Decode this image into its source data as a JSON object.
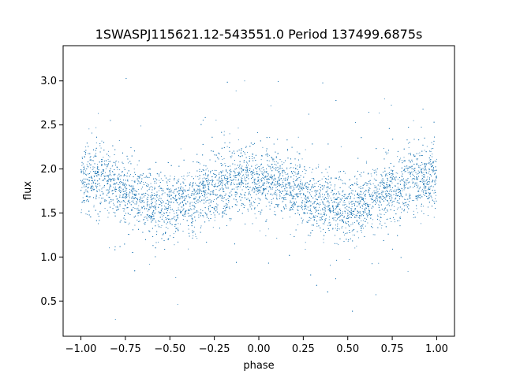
{
  "chart_data": {
    "type": "scatter",
    "title": "1SWASPJ115621.12-543551.0 Period 137499.6875s",
    "xlabel": "phase",
    "ylabel": "flux",
    "xlim": [
      -1.1,
      1.1
    ],
    "ylim": [
      0.1,
      3.4
    ],
    "xticks": [
      -1.0,
      -0.75,
      -0.5,
      -0.25,
      0.0,
      0.25,
      0.5,
      0.75,
      1.0
    ],
    "xtick_labels": [
      "−1.00",
      "−0.75",
      "−0.50",
      "−0.25",
      "0.00",
      "0.25",
      "0.50",
      "0.75",
      "1.00"
    ],
    "yticks": [
      0.5,
      1.0,
      1.5,
      2.0,
      2.5,
      3.0
    ],
    "ytick_labels": [
      "0.5",
      "1.0",
      "1.5",
      "2.0",
      "2.5",
      "3.0"
    ],
    "grid": false,
    "legend": "none",
    "series": [
      {
        "color": "#1f77b4",
        "phase_range": [
          -1.0,
          1.0
        ],
        "profile_phase": [
          -1.0,
          -0.9,
          -0.8,
          -0.7,
          -0.6,
          -0.5,
          -0.4,
          -0.3,
          -0.2,
          -0.1,
          0.0,
          0.1,
          0.2,
          0.3,
          0.4,
          0.5,
          0.6,
          0.7,
          0.8,
          0.9,
          1.0
        ],
        "profile_flux": [
          1.86,
          1.88,
          1.8,
          1.7,
          1.62,
          1.58,
          1.62,
          1.72,
          1.82,
          1.88,
          1.88,
          1.84,
          1.75,
          1.65,
          1.58,
          1.56,
          1.62,
          1.72,
          1.82,
          1.88,
          1.88
        ],
        "spread": 0.18,
        "flux_min": 0.25,
        "flux_max": 3.28
      }
    ]
  }
}
